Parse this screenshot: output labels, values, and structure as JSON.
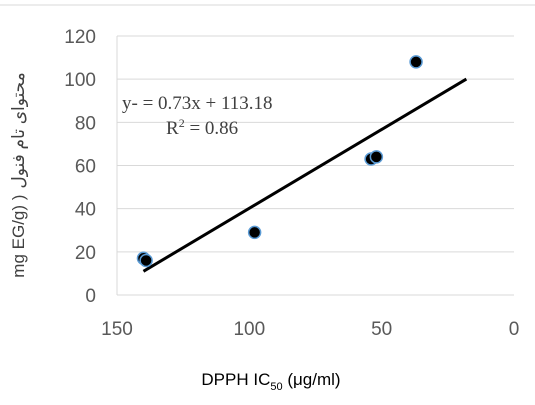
{
  "chart_data": {
    "type": "scatter",
    "x_reversed": true,
    "xlim": [
      0,
      150
    ],
    "ylim": [
      0,
      120
    ],
    "x_ticks": [
      150,
      100,
      50,
      0
    ],
    "y_ticks": [
      0,
      20,
      40,
      60,
      80,
      100,
      120
    ],
    "x_tick_labels": [
      "150",
      "100",
      "50",
      "0"
    ],
    "y_tick_labels": [
      "0",
      "20",
      "40",
      "60",
      "80",
      "100",
      "120"
    ],
    "xlabel": {
      "main": "DPPH IC",
      "sub": "50",
      "unit": " (μg/ml)"
    },
    "ylabel": {
      "unit": "mg EG/g) )",
      "persian": "محتوای تام فنول"
    },
    "gridlines": "horizontal",
    "series": [
      {
        "points": [
          {
            "x": 140,
            "y": 17
          },
          {
            "x": 139,
            "y": 16
          },
          {
            "x": 98,
            "y": 29
          },
          {
            "x": 54,
            "y": 63
          },
          {
            "x": 52,
            "y": 64
          },
          {
            "x": 37,
            "y": 108
          }
        ],
        "marker_fill": "#000000",
        "marker_edge": "#5b9bd5"
      }
    ],
    "trendline": {
      "type": "linear",
      "x_start": 140,
      "x_end": 18,
      "slope": -0.73,
      "intercept": 113.18,
      "color": "#000000"
    },
    "annotations": {
      "equation": "y- = 0.73x + 113.18",
      "r_squared_base": "R",
      "r_squared_exp": "2",
      "r_squared_value": " = 0.86"
    },
    "colors": {
      "gridline": "#d9d9d9",
      "axis_line": "#d9d9d9",
      "tick_text": "#595959"
    }
  }
}
